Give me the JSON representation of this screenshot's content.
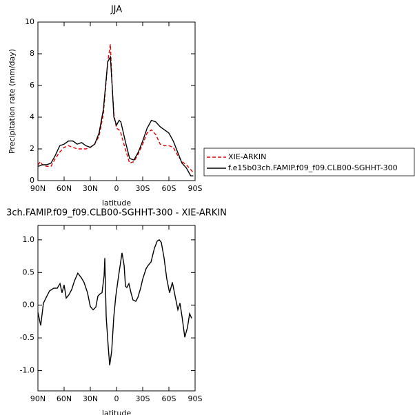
{
  "chart_data": [
    {
      "type": "line",
      "title": "JJA",
      "xlabel": "latitude",
      "ylabel": "Precipitation rate (mm/day)",
      "x": [
        90,
        87,
        85,
        80,
        75,
        70,
        65,
        60,
        55,
        50,
        45,
        40,
        35,
        30,
        25,
        20,
        15,
        10,
        7,
        5,
        3,
        0,
        -3,
        -5,
        -10,
        -15,
        -20,
        -25,
        -30,
        -35,
        -40,
        -45,
        -50,
        -55,
        -60,
        -65,
        -70,
        -75,
        -80,
        -85,
        -88
      ],
      "series": [
        {
          "name": "XIE-ARKIN",
          "color": "#e00000",
          "linestyle": "dashed",
          "values": [
            1.0,
            1.2,
            1.0,
            0.9,
            0.9,
            1.4,
            1.8,
            2.1,
            2.2,
            2.1,
            2.0,
            2.0,
            2.0,
            2.1,
            2.3,
            2.8,
            4.2,
            7.5,
            8.6,
            6.0,
            4.2,
            3.3,
            3.2,
            3.0,
            2.0,
            1.1,
            1.2,
            1.7,
            2.3,
            3.0,
            3.2,
            2.9,
            2.3,
            2.2,
            2.2,
            2.1,
            1.6,
            1.2,
            1.0,
            0.7,
            0.5
          ]
        },
        {
          "name": "f.e15b03ch.FAMIP.f09_f09.CLB00-SGHHT-300",
          "color": "#000000",
          "linestyle": "solid",
          "values": [
            0.9,
            0.95,
            1.0,
            1.0,
            1.1,
            1.6,
            2.2,
            2.3,
            2.5,
            2.5,
            2.3,
            2.4,
            2.2,
            2.1,
            2.3,
            3.0,
            4.5,
            7.5,
            7.8,
            6.0,
            4.0,
            3.5,
            3.8,
            3.7,
            2.5,
            1.4,
            1.3,
            1.8,
            2.5,
            3.3,
            3.8,
            3.7,
            3.4,
            3.2,
            3.0,
            2.5,
            1.8,
            1.1,
            0.8,
            0.3,
            0.3
          ]
        }
      ],
      "xlim": [
        90,
        -90
      ],
      "xticks": [
        {
          "value": 90,
          "label": "90N"
        },
        {
          "value": 60,
          "label": "60N"
        },
        {
          "value": 30,
          "label": "30N"
        },
        0,
        {
          "value": -30,
          "label": "30S"
        },
        {
          "value": -60,
          "label": "60S"
        },
        {
          "value": -90,
          "label": "90S"
        }
      ],
      "ylim": [
        0,
        10
      ],
      "yticks": [
        0,
        2,
        4,
        6,
        8,
        10
      ],
      "legend": "right"
    },
    {
      "type": "line",
      "title": "3ch.FAMIP.f09_f09.CLB00-SGHHT-300 - XIE-ARKIN",
      "xlabel": "latitude",
      "x": [
        90,
        86.8,
        83.7,
        80.5,
        76.6,
        71.8,
        67.9,
        64.7,
        62.4,
        60,
        57.6,
        54.5,
        51.3,
        48.2,
        44.3,
        40.3,
        37.2,
        33.2,
        30,
        26.8,
        23.7,
        21.3,
        18.2,
        16.6,
        14.2,
        13.4,
        11.8,
        9.4,
        7.8,
        5.5,
        3.1,
        0.8,
        -2.4,
        -6.3,
        -8.7,
        -10.3,
        -11.8,
        -14.2,
        -16.6,
        -18.9,
        -22.1,
        -24.5,
        -27.6,
        -30,
        -33.9,
        -36.3,
        -39.5,
        -43.4,
        -46.6,
        -48.9,
        -51.3,
        -54.5,
        -57.6,
        -60.8,
        -64,
        -67.1,
        -70.3,
        -72.7,
        -75.1,
        -78.2,
        -81.3,
        -83.7,
        -86.1
      ],
      "series": [
        {
          "color": "#000000",
          "linestyle": "solid",
          "values": [
            -0.11,
            -0.31,
            0.03,
            0.12,
            0.22,
            0.26,
            0.26,
            0.33,
            0.19,
            0.31,
            0.11,
            0.16,
            0.24,
            0.37,
            0.49,
            0.42,
            0.35,
            0.19,
            -0.02,
            -0.07,
            -0.03,
            0.14,
            0.18,
            0.19,
            0.45,
            0.72,
            -0.18,
            -0.65,
            -0.92,
            -0.7,
            -0.18,
            0.14,
            0.45,
            0.8,
            0.61,
            0.29,
            0.27,
            0.33,
            0.19,
            0.08,
            0.06,
            0.12,
            0.26,
            0.4,
            0.56,
            0.61,
            0.66,
            0.87,
            0.98,
            1.0,
            0.96,
            0.72,
            0.4,
            0.19,
            0.35,
            0.14,
            -0.07,
            0.03,
            -0.18,
            -0.49,
            -0.34,
            -0.13,
            -0.2
          ]
        }
      ],
      "xlim": [
        90,
        -90
      ],
      "xticks": [
        {
          "value": 90,
          "label": "90N"
        },
        {
          "value": 60,
          "label": "60N"
        },
        {
          "value": 30,
          "label": "30N"
        },
        0,
        {
          "value": -30,
          "label": "30S"
        },
        {
          "value": -60,
          "label": "60S"
        },
        {
          "value": -90,
          "label": "90S"
        }
      ],
      "ylim": [
        -1.31,
        1.22
      ],
      "yticks": [
        {
          "value": -1,
          "label": "-1.0"
        },
        -0.5,
        {
          "value": 0,
          "label": "0.0"
        },
        0.5,
        {
          "value": 1,
          "label": "1.0"
        }
      ]
    }
  ]
}
